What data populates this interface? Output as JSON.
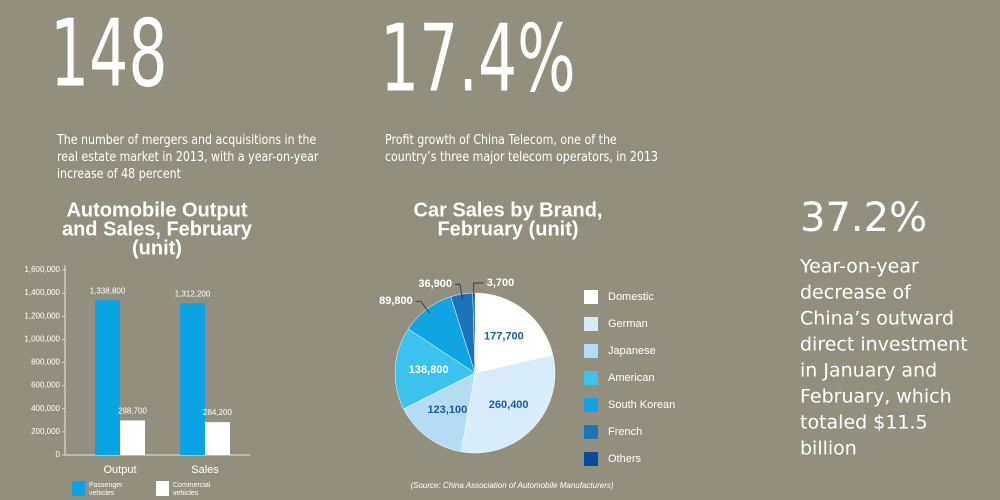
{
  "stats": [
    {
      "figure": "148",
      "lines": [
        "The number of mergers and acquisitions in the",
        "real estate market in 2013, with a year-on-year",
        "increase of 48 percent"
      ]
    },
    {
      "figure": "17.4%",
      "lines": [
        "Profit growth of China Telecom, one of the",
        "country’s three major telecom operators, in 2013"
      ]
    },
    {
      "figure": "37.2%",
      "lines": [
        "Year-on-year",
        "decrease of",
        "China’s outward",
        "direct investment",
        "in January and",
        "February, which",
        "totaled $11.5",
        "billion"
      ]
    }
  ],
  "chart_data": [
    {
      "type": "bar",
      "title": [
        "Automobile Output",
        "and Sales, February",
        "(unit)"
      ],
      "categories": [
        "Output",
        "Sales"
      ],
      "series": [
        {
          "name": [
            "Passenger",
            "vehicles"
          ],
          "color": "#0aa3e3",
          "values": [
            1338800,
            1312200
          ],
          "value_labels": [
            "1,338,800",
            "1,312,200"
          ]
        },
        {
          "name": [
            "Commercial",
            "vehicles"
          ],
          "color": "#ffffff",
          "values": [
            298700,
            284200
          ],
          "value_labels": [
            "298,700",
            "284,200"
          ]
        }
      ],
      "ylim": [
        0,
        1600000
      ],
      "yticks": [
        0,
        {
          "value": 200000,
          "label": "200,000"
        },
        {
          "value": 400000,
          "label": "400,000"
        },
        {
          "value": 600000,
          "label": "600,000"
        },
        {
          "value": 800000,
          "label": "800,000"
        },
        {
          "value": 1000000,
          "label": "1,000,000"
        },
        {
          "value": 1200000,
          "label": "1,200,000"
        },
        {
          "value": 1400000,
          "label": "1,400,000"
        },
        {
          "value": 1600000,
          "label": "1,600,000"
        }
      ]
    },
    {
      "type": "pie",
      "title": [
        "Car Sales by Brand,",
        "February (unit)"
      ],
      "categories": [
        "Domestic",
        "German",
        "Japanese",
        "American",
        "South Korean",
        "French",
        "Others"
      ],
      "values": [
        177700,
        260400,
        123100,
        138800,
        89800,
        36900,
        3700
      ],
      "value_labels": [
        "177,700",
        "260,400",
        "123,100",
        "138,800",
        "89,800",
        "36,900",
        "3,700"
      ],
      "colors": [
        "#ffffff",
        "#d8edf9",
        "#b4dcf3",
        "#3cc2ef",
        "#10a5e2",
        "#1b73b9",
        "#0c4b9b"
      ],
      "source": "(Source: China Association of Automobile Manufacturers)"
    }
  ]
}
